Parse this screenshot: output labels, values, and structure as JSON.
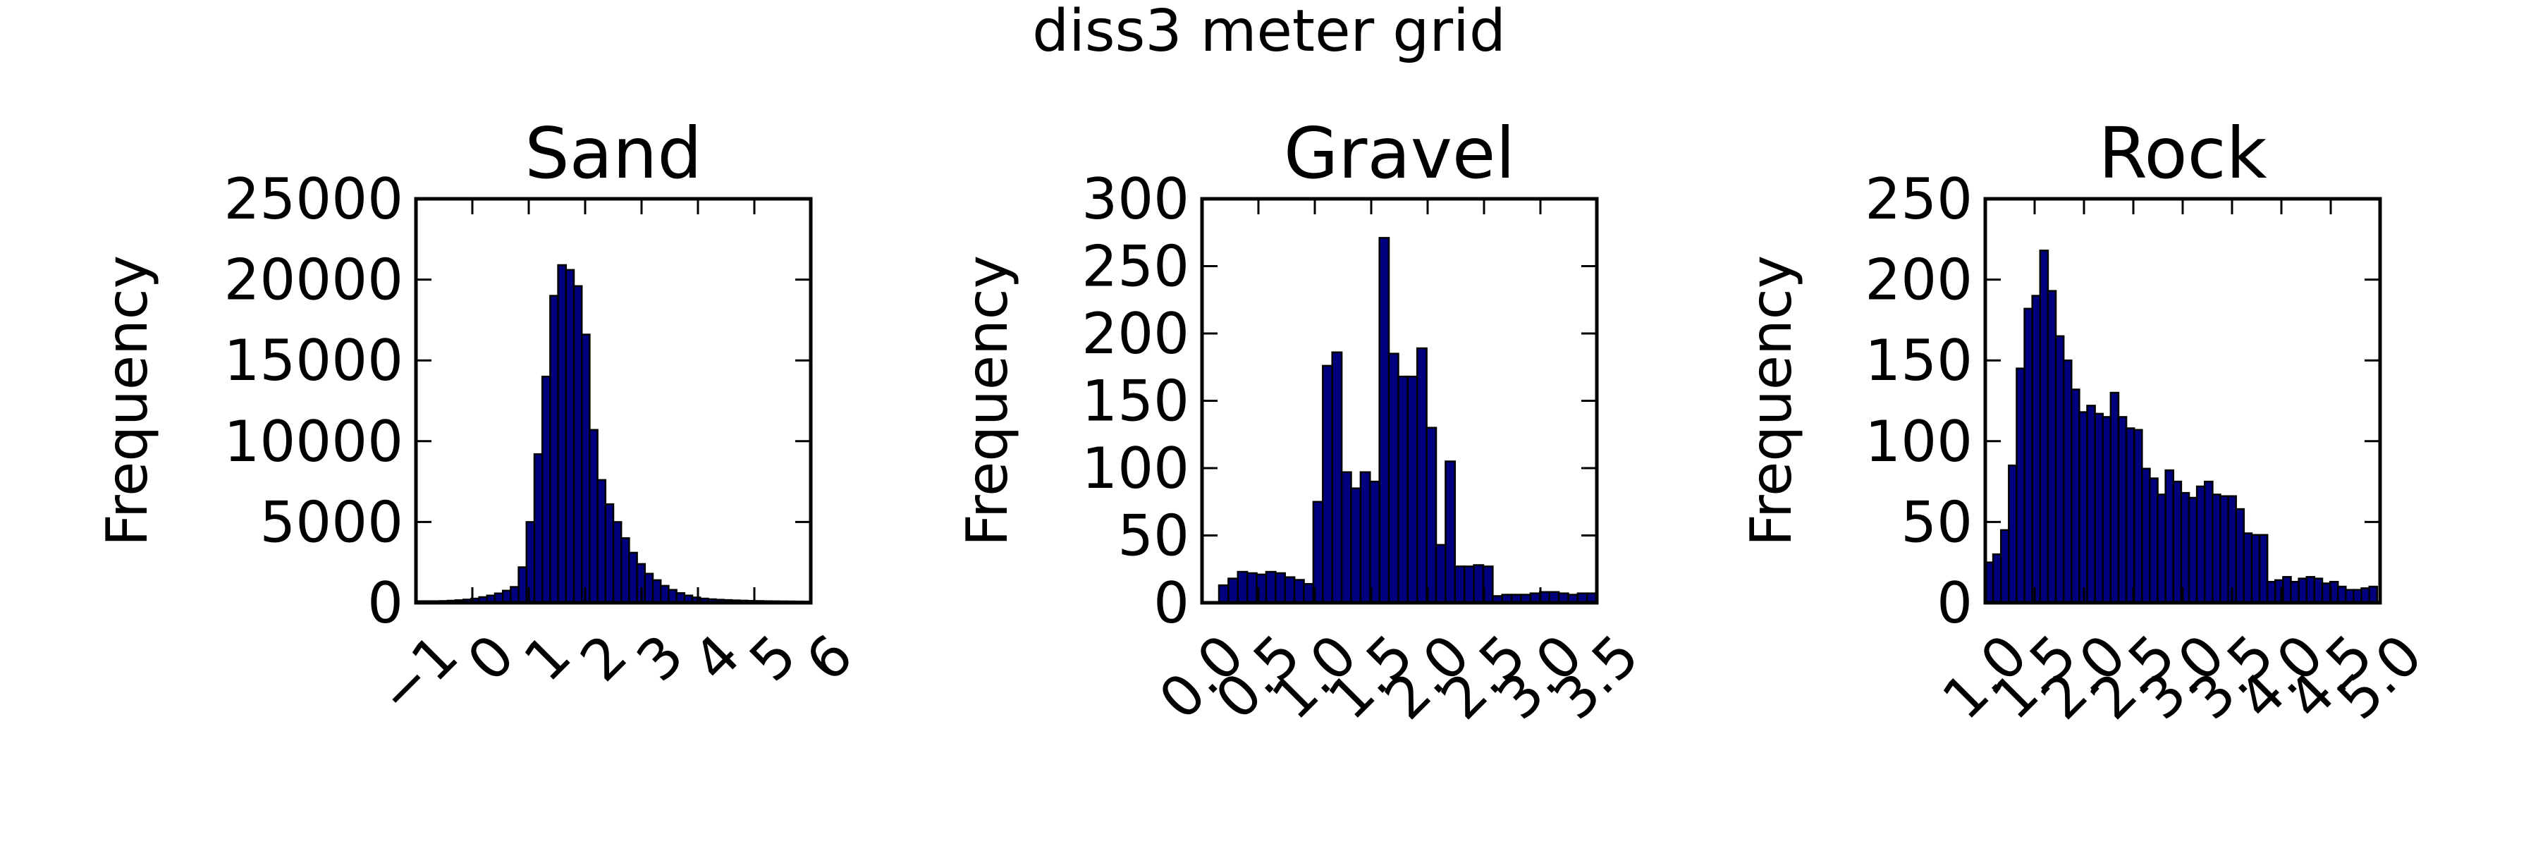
{
  "figure": {
    "suptitle": "diss3 meter grid"
  },
  "colors": {
    "background": "#ffffff",
    "bar_fill": "#00007f",
    "bar_edge": "#000000",
    "axes": "#000000"
  },
  "chart_data": [
    {
      "type": "histogram",
      "title": "Sand",
      "xlabel": "",
      "ylabel": "Frequency",
      "xlim": [
        -1,
        6
      ],
      "ylim": [
        0,
        25000
      ],
      "xticks": [
        -1,
        0,
        1,
        2,
        3,
        4,
        5,
        6
      ],
      "xtick_labels": [
        "−1",
        "0",
        "1",
        "2",
        "3",
        "4",
        "5",
        "6"
      ],
      "yticks": [
        0,
        5000,
        10000,
        15000,
        20000,
        25000
      ],
      "ytick_labels": [
        "0",
        "5000",
        "10000",
        "15000",
        "20000",
        "25000"
      ],
      "bin_edges_range": [
        -1,
        6
      ],
      "bin_width": 0.14,
      "values": [
        100,
        100,
        100,
        110,
        130,
        160,
        200,
        260,
        350,
        450,
        580,
        750,
        980,
        2200,
        5000,
        9200,
        14000,
        19000,
        20900,
        20600,
        19600,
        16600,
        10700,
        7600,
        6100,
        5000,
        4000,
        3100,
        2400,
        1800,
        1400,
        1050,
        800,
        600,
        450,
        330,
        260,
        220,
        190,
        170,
        150,
        135,
        120,
        110,
        100,
        95,
        90,
        85,
        80,
        75
      ],
      "grid": false,
      "legend": "none"
    },
    {
      "type": "histogram",
      "title": "Gravel",
      "xlabel": "",
      "ylabel": "Frequency",
      "xlim": [
        0,
        3.5
      ],
      "ylim": [
        0,
        300
      ],
      "xticks": [
        0,
        0.5,
        1,
        1.5,
        2,
        2.5,
        3,
        3.5
      ],
      "xtick_labels": [
        "0.0",
        "0.5",
        "1.0",
        "1.5",
        "2.0",
        "2.5",
        "3.0",
        "3.5"
      ],
      "yticks": [
        0,
        50,
        100,
        150,
        200,
        250,
        300
      ],
      "ytick_labels": [
        "0",
        "50",
        "100",
        "150",
        "200",
        "250",
        "300"
      ],
      "bin_edges_range": [
        0.15,
        3.5
      ],
      "bin_width": 0.0837,
      "values": [
        13,
        18,
        23,
        22,
        21,
        23,
        22,
        19,
        17,
        14,
        75,
        176,
        186,
        97,
        85,
        97,
        90,
        271,
        185,
        168,
        168,
        189,
        130,
        43,
        105,
        27,
        27,
        28,
        27,
        5,
        6,
        6,
        6,
        7,
        8,
        8,
        7,
        6,
        7,
        7
      ],
      "grid": false,
      "legend": "none"
    },
    {
      "type": "histogram",
      "title": "Rock",
      "xlabel": "",
      "ylabel": "Frequency",
      "xlim": [
        1,
        5
      ],
      "ylim": [
        0,
        250
      ],
      "xticks": [
        1,
        1.5,
        2,
        2.5,
        3,
        3.5,
        4,
        4.5,
        5
      ],
      "xtick_labels": [
        "1.0",
        "1.5",
        "2.0",
        "2.5",
        "3.0",
        "3.5",
        "4.0",
        "4.5",
        "5.0"
      ],
      "yticks": [
        0,
        50,
        100,
        150,
        200,
        250
      ],
      "ytick_labels": [
        "0",
        "50",
        "100",
        "150",
        "200",
        "250"
      ],
      "bin_edges_range": [
        1,
        4.97
      ],
      "bin_width": 0.0794,
      "values": [
        25,
        30,
        45,
        85,
        145,
        182,
        190,
        218,
        193,
        165,
        150,
        132,
        118,
        122,
        117,
        115,
        130,
        115,
        108,
        107,
        83,
        77,
        67,
        82,
        75,
        68,
        65,
        72,
        75,
        67,
        66,
        66,
        58,
        43,
        42,
        42,
        13,
        14,
        16,
        13,
        15,
        16,
        15,
        12,
        13,
        10,
        8,
        8,
        9,
        10
      ],
      "grid": false,
      "legend": "none"
    }
  ]
}
